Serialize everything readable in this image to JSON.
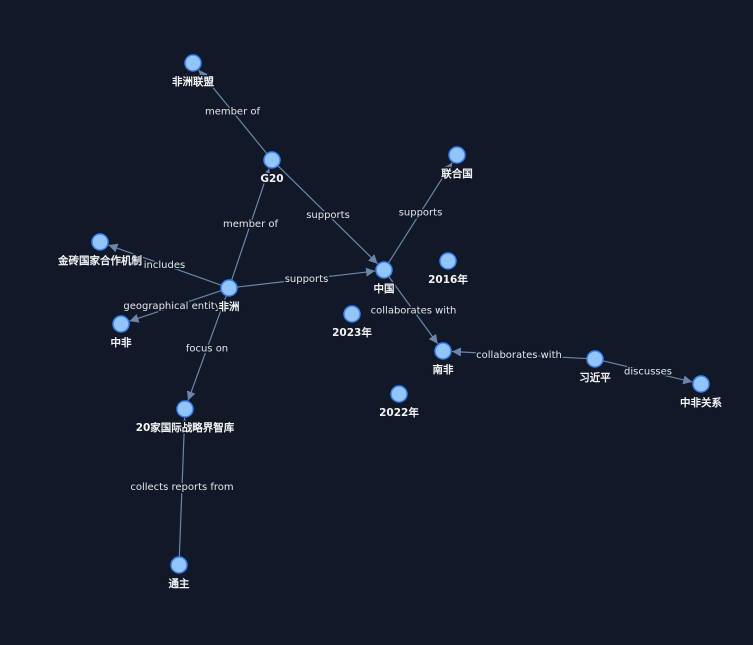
{
  "graph": {
    "colors": {
      "background": "#111827",
      "node_fill": "#93c5fd",
      "node_stroke": "#3b82f6",
      "edge": "#6b86ad",
      "text": "#f3f4f6"
    },
    "nodes": [
      {
        "id": "african-union",
        "label": "非洲联盟"
      },
      {
        "id": "g20",
        "label": "G20"
      },
      {
        "id": "un",
        "label": "联合国"
      },
      {
        "id": "brics",
        "label": "金砖国家合作机制"
      },
      {
        "id": "china",
        "label": "中国"
      },
      {
        "id": "y2016",
        "label": "2016年"
      },
      {
        "id": "africa",
        "label": "非洲"
      },
      {
        "id": "china-africa",
        "label": "中非"
      },
      {
        "id": "y2023",
        "label": "2023年"
      },
      {
        "id": "south-africa",
        "label": "南非"
      },
      {
        "id": "xi",
        "label": "习近平"
      },
      {
        "id": "sino-african-relations",
        "label": "中非关系"
      },
      {
        "id": "y2022",
        "label": "2022年"
      },
      {
        "id": "think-tanks",
        "label": "20家国际战略界智库"
      },
      {
        "id": "weekly",
        "label": "通主"
      }
    ],
    "edges": [
      {
        "source": "g20",
        "target": "african-union",
        "label": "member of"
      },
      {
        "source": "africa",
        "target": "g20",
        "label": "member of"
      },
      {
        "source": "g20",
        "target": "china",
        "label": "supports"
      },
      {
        "source": "china",
        "target": "un",
        "label": "supports"
      },
      {
        "source": "africa",
        "target": "brics",
        "label": "includes"
      },
      {
        "source": "africa",
        "target": "china",
        "label": "supports"
      },
      {
        "source": "africa",
        "target": "china-africa",
        "label": "geographical entity"
      },
      {
        "source": "china",
        "target": "south-africa",
        "label": "collaborates with"
      },
      {
        "source": "xi",
        "target": "south-africa",
        "label": "collaborates with"
      },
      {
        "source": "xi",
        "target": "sino-african-relations",
        "label": "discusses"
      },
      {
        "source": "africa",
        "target": "think-tanks",
        "label": "focus on"
      },
      {
        "source": "weekly",
        "target": "think-tanks",
        "label": "collects reports from"
      }
    ]
  }
}
